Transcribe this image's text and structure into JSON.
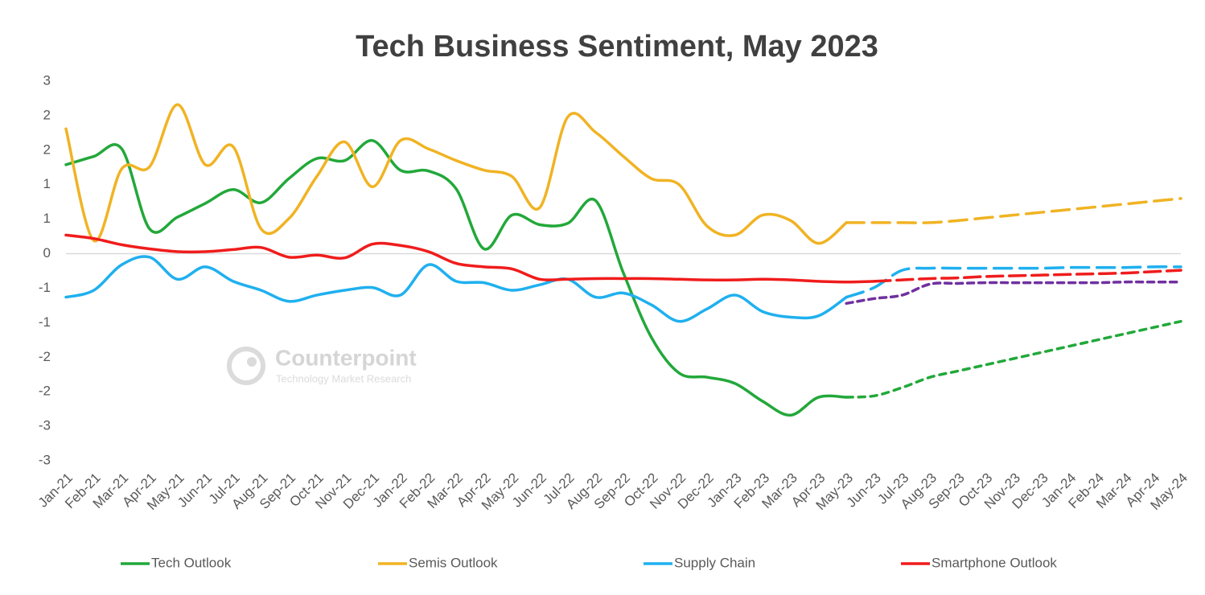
{
  "chart_data": {
    "type": "line",
    "title": "Tech Business Sentiment, May 2023",
    "watermark": {
      "name": "Counterpoint",
      "tagline": "Technology Market Research"
    },
    "categories": [
      "Jan-21",
      "Feb-21",
      "Mar-21",
      "Apr-21",
      "May-21",
      "Jun-21",
      "Jul-21",
      "Aug-21",
      "Sep-21",
      "Oct-21",
      "Nov-21",
      "Dec-21",
      "Jan-22",
      "Feb-22",
      "Mar-22",
      "Apr-22",
      "May-22",
      "Jun-22",
      "Jul-22",
      "Aug-22",
      "Sep-22",
      "Oct-22",
      "Nov-22",
      "Dec-22",
      "Jan-23",
      "Feb-23",
      "Mar-23",
      "Apr-23",
      "May-23",
      "Jun-23",
      "Jul-23",
      "Aug-23",
      "Sep-23",
      "Oct-23",
      "Nov-23",
      "Dec-23",
      "Jan-24",
      "Feb-24",
      "Mar-24",
      "Apr-24",
      "May-24"
    ],
    "ylim": [
      -3,
      2.5
    ],
    "yticks": [
      -3,
      {
        "value": -2.5,
        "label": "-3"
      },
      -2,
      {
        "value": -1.5,
        "label": "-2"
      },
      -1,
      {
        "value": -0.5,
        "label": "-1"
      },
      0,
      {
        "value": 0.5,
        "label": "1"
      },
      1,
      {
        "value": 1.5,
        "label": "2"
      },
      2,
      {
        "value": 2.5,
        "label": "3"
      }
    ],
    "zero_line": true,
    "series": [
      {
        "name": "Tech Outlook",
        "color": "#22a83a",
        "dash": "8 7",
        "values": [
          1.29,
          1.41,
          1.52,
          0.36,
          0.53,
          0.73,
          0.93,
          0.74,
          1.09,
          1.38,
          1.35,
          1.64,
          1.21,
          1.2,
          0.94,
          0.07,
          0.56,
          0.42,
          0.44,
          0.77,
          -0.28,
          -1.21,
          -1.73,
          -1.79,
          -1.88,
          -2.14,
          -2.34,
          -2.08,
          -2.08,
          null,
          null,
          null,
          null,
          null,
          null,
          null,
          null,
          null,
          null,
          null,
          null
        ],
        "forecast": [
          null,
          null,
          null,
          null,
          null,
          null,
          null,
          null,
          null,
          null,
          null,
          null,
          null,
          null,
          null,
          null,
          null,
          null,
          null,
          null,
          null,
          null,
          null,
          null,
          null,
          null,
          null,
          null,
          -2.08,
          -2.06,
          -1.94,
          -1.79,
          -1.7,
          -1.61,
          -1.52,
          -1.43,
          -1.34,
          -1.25,
          -1.16,
          -1.07,
          -0.98
        ]
      },
      {
        "name": "Semis Outlook",
        "color": "#f0b323",
        "dash": "22 10",
        "values": [
          1.81,
          0.19,
          1.23,
          1.26,
          2.16,
          1.29,
          1.55,
          0.36,
          0.51,
          1.12,
          1.62,
          0.97,
          1.64,
          1.52,
          1.35,
          1.21,
          1.12,
          0.67,
          1.98,
          1.76,
          1.41,
          1.09,
          1.0,
          0.4,
          0.27,
          0.56,
          0.48,
          0.15,
          0.45,
          null,
          null,
          null,
          null,
          null,
          null,
          null,
          null,
          null,
          null,
          null,
          null
        ],
        "forecast": [
          null,
          null,
          null,
          null,
          null,
          null,
          null,
          null,
          null,
          null,
          null,
          null,
          null,
          null,
          null,
          null,
          null,
          null,
          null,
          null,
          null,
          null,
          null,
          null,
          null,
          null,
          null,
          null,
          0.45,
          0.45,
          0.45,
          0.45,
          0.48,
          0.52,
          0.56,
          0.6,
          0.64,
          0.68,
          0.72,
          0.76,
          0.8
        ]
      },
      {
        "name": "Supply Chain",
        "color": "#1fb0ef",
        "dash": "22 10",
        "values": [
          -0.63,
          -0.53,
          -0.16,
          -0.05,
          -0.37,
          -0.19,
          -0.4,
          -0.53,
          -0.69,
          -0.6,
          -0.53,
          -0.49,
          -0.6,
          -0.16,
          -0.4,
          -0.42,
          -0.53,
          -0.45,
          -0.37,
          -0.63,
          -0.57,
          -0.74,
          -0.98,
          -0.8,
          -0.6,
          -0.84,
          -0.92,
          -0.9,
          -0.63,
          null,
          null,
          null,
          null,
          null,
          null,
          null,
          null,
          null,
          null,
          null,
          null
        ],
        "forecast": [
          null,
          null,
          null,
          null,
          null,
          null,
          null,
          null,
          null,
          null,
          null,
          null,
          null,
          null,
          null,
          null,
          null,
          null,
          null,
          null,
          null,
          null,
          null,
          null,
          null,
          null,
          null,
          null,
          -0.63,
          -0.49,
          -0.24,
          -0.21,
          -0.21,
          -0.21,
          -0.21,
          -0.21,
          -0.2,
          -0.2,
          -0.2,
          -0.19,
          -0.19
        ]
      },
      {
        "name": "Smartphone Outlook",
        "color": "#f01c1c",
        "dash": "20 8",
        "values": [
          0.27,
          0.22,
          0.13,
          0.07,
          0.03,
          0.03,
          0.06,
          0.09,
          -0.05,
          -0.02,
          -0.06,
          0.14,
          0.12,
          0.03,
          -0.14,
          -0.19,
          -0.22,
          -0.37,
          -0.37,
          -0.36,
          -0.36,
          -0.36,
          -0.37,
          -0.38,
          -0.38,
          -0.37,
          -0.38,
          -0.4,
          -0.41,
          -0.4,
          null,
          null,
          null,
          null,
          null,
          null,
          null,
          null,
          null,
          null,
          null
        ],
        "forecast": [
          null,
          null,
          null,
          null,
          null,
          null,
          null,
          null,
          null,
          null,
          null,
          null,
          null,
          null,
          null,
          null,
          null,
          null,
          null,
          null,
          null,
          null,
          null,
          null,
          null,
          null,
          null,
          null,
          null,
          -0.4,
          -0.38,
          -0.36,
          -0.35,
          -0.33,
          -0.32,
          -0.31,
          -0.3,
          -0.29,
          -0.28,
          -0.26,
          -0.24
        ]
      },
      {
        "color": "#7030a0",
        "dash": "8 6",
        "forecast": [
          null,
          null,
          null,
          null,
          null,
          null,
          null,
          null,
          null,
          null,
          null,
          null,
          null,
          null,
          null,
          null,
          null,
          null,
          null,
          null,
          null,
          null,
          null,
          null,
          null,
          null,
          null,
          null,
          -0.72,
          -0.65,
          -0.6,
          -0.44,
          -0.43,
          -0.42,
          -0.42,
          -0.42,
          -0.42,
          -0.42,
          -0.41,
          -0.41,
          -0.41
        ]
      }
    ]
  }
}
